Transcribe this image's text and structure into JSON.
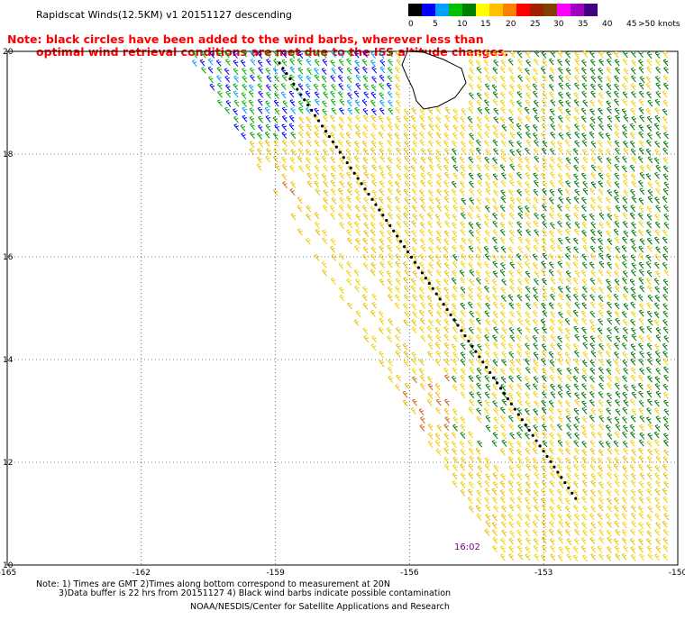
{
  "title": "Rapidscat Winds(12.5KM) v1 20151127 descending",
  "note": {
    "line1": "Note: black circles have been added to the wind barbs, wherever less than",
    "line2": "optimal wind retrieval conditions are met due to the ISS altitude changes."
  },
  "colorbar": {
    "colors": [
      "#000000",
      "#0000ff",
      "#00a0ff",
      "#00c000",
      "#008000",
      "#ffff00",
      "#ffc000",
      "#ff7f00",
      "#ff0000",
      "#a02000",
      "#804000",
      "#ff00ff",
      "#a000c0",
      "#400080"
    ],
    "labels": [
      "0",
      "5",
      "10",
      "15",
      "20",
      "25",
      "30",
      "35",
      "40",
      "45",
      ">50 knots"
    ]
  },
  "axes": {
    "x_ticks": [
      "-165",
      "-162",
      "-159",
      "-156",
      "-153",
      "-150"
    ],
    "y_ticks": [
      "20",
      "18",
      "16",
      "14",
      "12",
      "10"
    ]
  },
  "time_label": "16:02",
  "footer": {
    "line1": "Note: 1) Times are GMT 2)Times along bottom correspond to measurement at 20N",
    "line2": "3)Data buffer is 22 hrs from 20151127 4) Black wind barbs indicate possible contamination",
    "line3": "NOAA/NESDIS/Center for Satellite Applications and Research"
  }
}
